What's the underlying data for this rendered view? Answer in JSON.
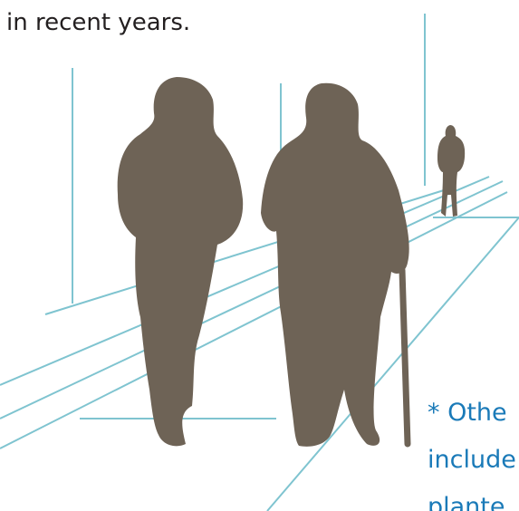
{
  "text": {
    "intro": "in recent years.",
    "note_lines": [
      "* Othe",
      "include",
      "plante"
    ]
  }
}
